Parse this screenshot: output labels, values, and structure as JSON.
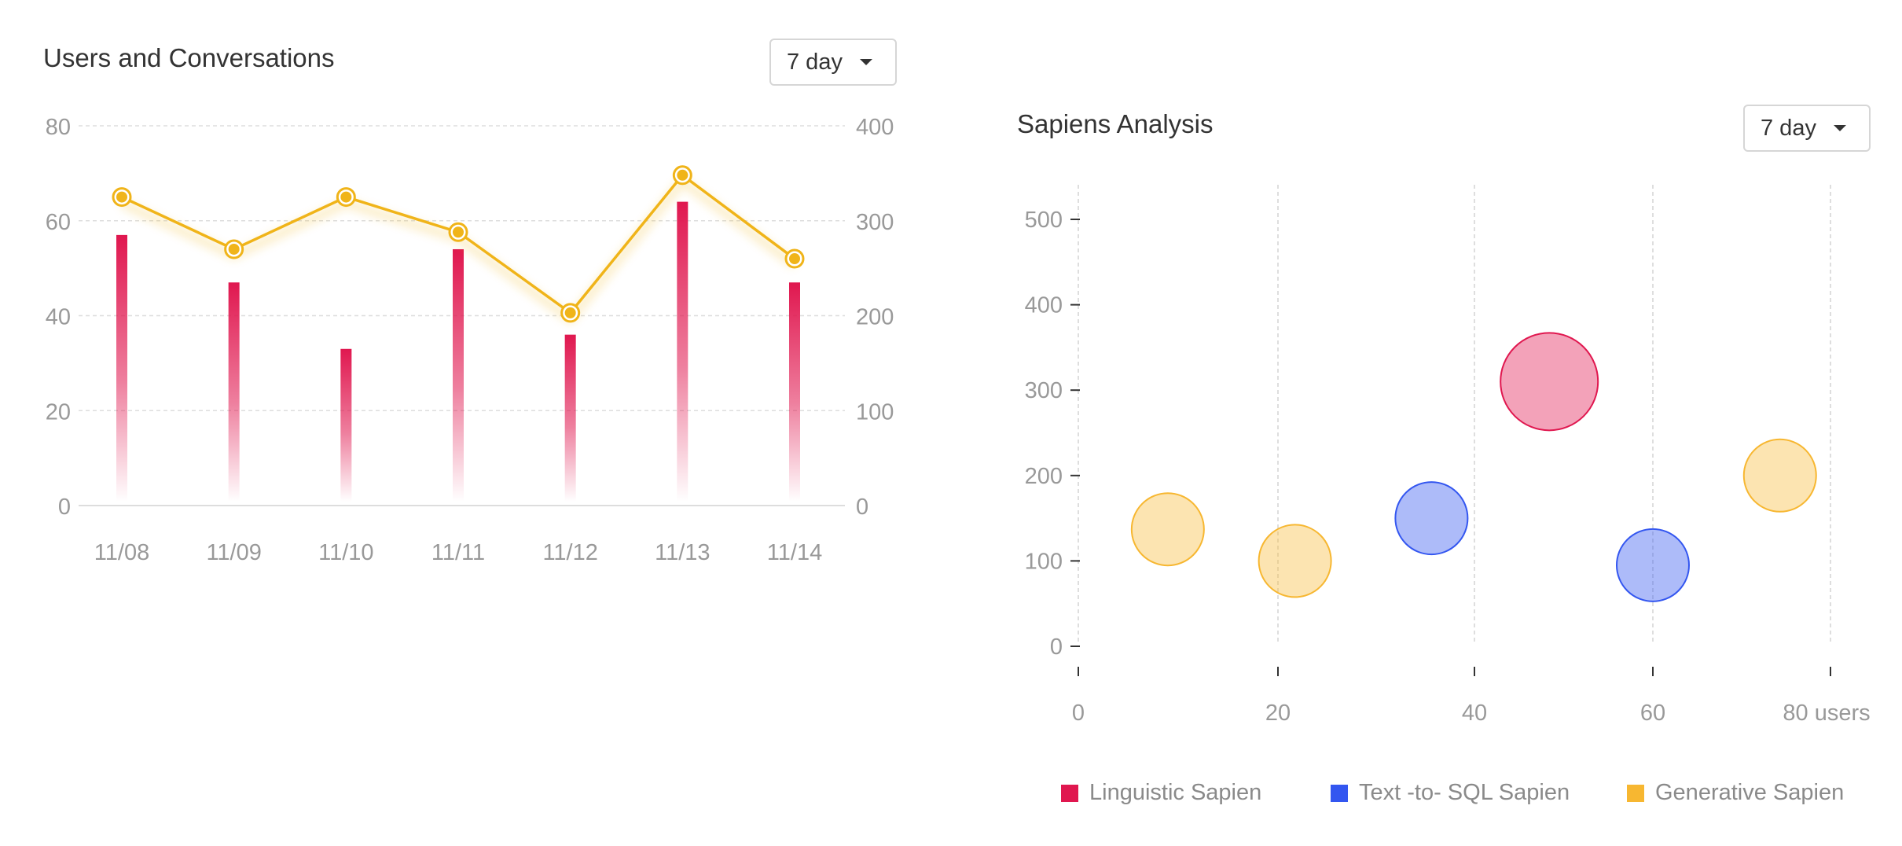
{
  "left_panel": {
    "title": "Users and Conversations",
    "range_label": "7 day"
  },
  "right_panel": {
    "title": "Sapiens Analysis",
    "range_label": "7 day"
  },
  "colors": {
    "bar": "#e0174f",
    "line": "#f0b419",
    "linguistic": "#e0174f",
    "text_to_sql": "#3356f0",
    "generative": "#f7b731"
  },
  "chart_data": [
    {
      "type": "bar",
      "title": "Users and Conversations",
      "categories": [
        "11/08",
        "11/09",
        "11/10",
        "11/11",
        "11/12",
        "11/13",
        "11/14"
      ],
      "series": [
        {
          "values": [
            57,
            47,
            33,
            54,
            36,
            64,
            47
          ],
          "axis": "left"
        },
        {
          "values": [
            325,
            270,
            325,
            288,
            203,
            348,
            260
          ],
          "axis": "right",
          "render": "line"
        }
      ],
      "y_left": {
        "ticks": [
          0,
          20,
          40,
          60,
          80
        ],
        "ylim": [
          0,
          80
        ]
      },
      "y_right": {
        "ticks": [
          0,
          100,
          200,
          300,
          400
        ],
        "ylim": [
          0,
          400
        ]
      },
      "grid": true
    },
    {
      "type": "scatter",
      "title": "Sapiens Analysis",
      "x_ticks": [
        "0",
        "20",
        "40",
        "60",
        "80 users"
      ],
      "xlim": [
        0,
        85
      ],
      "y_ticks": [
        0,
        100,
        200,
        300,
        400,
        500
      ],
      "ylim": [
        -30,
        540
      ],
      "grid": true,
      "legend_position": "bottom",
      "series": [
        {
          "name": "Linguistic Sapien",
          "points": [
            {
              "x": 50,
              "y": 310
            }
          ]
        },
        {
          "name": "Text -to- SQL Sapien",
          "points": [
            {
              "x": 37.5,
              "y": 150
            },
            {
              "x": 61,
              "y": 95
            }
          ]
        },
        {
          "name": "Generative Sapien",
          "points": [
            {
              "x": 9.5,
              "y": 137
            },
            {
              "x": 23,
              "y": 100
            },
            {
              "x": 74.5,
              "y": 200
            }
          ]
        }
      ]
    }
  ]
}
